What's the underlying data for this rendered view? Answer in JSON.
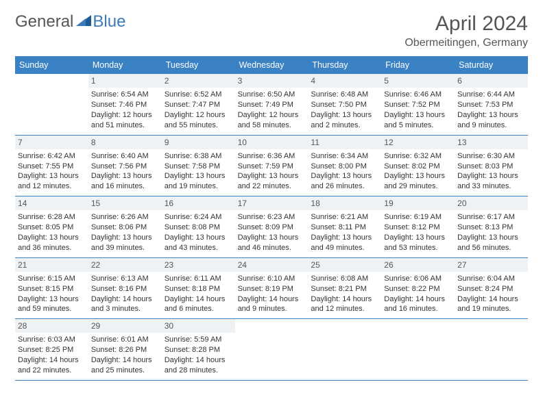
{
  "logo": {
    "general": "General",
    "blue": "Blue"
  },
  "title": {
    "month_year": "April 2024",
    "location": "Obermeitingen, Germany"
  },
  "weekdays": [
    "Sunday",
    "Monday",
    "Tuesday",
    "Wednesday",
    "Thursday",
    "Friday",
    "Saturday"
  ],
  "colors": {
    "header_bg": "#3b82c4",
    "header_text": "#ffffff",
    "daynum_bg": "#eef2f5",
    "border": "#3b82c4",
    "logo_general": "#555555",
    "logo_blue": "#3a7ab8",
    "title_color": "#555555",
    "text_color": "#333333",
    "background": "#ffffff"
  },
  "typography": {
    "body_font": "Arial",
    "month_year_size": 30,
    "location_size": 16,
    "weekday_size": 12.5,
    "daynum_size": 12,
    "info_size": 11
  },
  "weeks": [
    [
      {
        "empty": true
      },
      {
        "day": "1",
        "sunrise": "Sunrise: 6:54 AM",
        "sunset": "Sunset: 7:46 PM",
        "daylight1": "Daylight: 12 hours",
        "daylight2": "and 51 minutes."
      },
      {
        "day": "2",
        "sunrise": "Sunrise: 6:52 AM",
        "sunset": "Sunset: 7:47 PM",
        "daylight1": "Daylight: 12 hours",
        "daylight2": "and 55 minutes."
      },
      {
        "day": "3",
        "sunrise": "Sunrise: 6:50 AM",
        "sunset": "Sunset: 7:49 PM",
        "daylight1": "Daylight: 12 hours",
        "daylight2": "and 58 minutes."
      },
      {
        "day": "4",
        "sunrise": "Sunrise: 6:48 AM",
        "sunset": "Sunset: 7:50 PM",
        "daylight1": "Daylight: 13 hours",
        "daylight2": "and 2 minutes."
      },
      {
        "day": "5",
        "sunrise": "Sunrise: 6:46 AM",
        "sunset": "Sunset: 7:52 PM",
        "daylight1": "Daylight: 13 hours",
        "daylight2": "and 5 minutes."
      },
      {
        "day": "6",
        "sunrise": "Sunrise: 6:44 AM",
        "sunset": "Sunset: 7:53 PM",
        "daylight1": "Daylight: 13 hours",
        "daylight2": "and 9 minutes."
      }
    ],
    [
      {
        "day": "7",
        "sunrise": "Sunrise: 6:42 AM",
        "sunset": "Sunset: 7:55 PM",
        "daylight1": "Daylight: 13 hours",
        "daylight2": "and 12 minutes."
      },
      {
        "day": "8",
        "sunrise": "Sunrise: 6:40 AM",
        "sunset": "Sunset: 7:56 PM",
        "daylight1": "Daylight: 13 hours",
        "daylight2": "and 16 minutes."
      },
      {
        "day": "9",
        "sunrise": "Sunrise: 6:38 AM",
        "sunset": "Sunset: 7:58 PM",
        "daylight1": "Daylight: 13 hours",
        "daylight2": "and 19 minutes."
      },
      {
        "day": "10",
        "sunrise": "Sunrise: 6:36 AM",
        "sunset": "Sunset: 7:59 PM",
        "daylight1": "Daylight: 13 hours",
        "daylight2": "and 22 minutes."
      },
      {
        "day": "11",
        "sunrise": "Sunrise: 6:34 AM",
        "sunset": "Sunset: 8:00 PM",
        "daylight1": "Daylight: 13 hours",
        "daylight2": "and 26 minutes."
      },
      {
        "day": "12",
        "sunrise": "Sunrise: 6:32 AM",
        "sunset": "Sunset: 8:02 PM",
        "daylight1": "Daylight: 13 hours",
        "daylight2": "and 29 minutes."
      },
      {
        "day": "13",
        "sunrise": "Sunrise: 6:30 AM",
        "sunset": "Sunset: 8:03 PM",
        "daylight1": "Daylight: 13 hours",
        "daylight2": "and 33 minutes."
      }
    ],
    [
      {
        "day": "14",
        "sunrise": "Sunrise: 6:28 AM",
        "sunset": "Sunset: 8:05 PM",
        "daylight1": "Daylight: 13 hours",
        "daylight2": "and 36 minutes."
      },
      {
        "day": "15",
        "sunrise": "Sunrise: 6:26 AM",
        "sunset": "Sunset: 8:06 PM",
        "daylight1": "Daylight: 13 hours",
        "daylight2": "and 39 minutes."
      },
      {
        "day": "16",
        "sunrise": "Sunrise: 6:24 AM",
        "sunset": "Sunset: 8:08 PM",
        "daylight1": "Daylight: 13 hours",
        "daylight2": "and 43 minutes."
      },
      {
        "day": "17",
        "sunrise": "Sunrise: 6:23 AM",
        "sunset": "Sunset: 8:09 PM",
        "daylight1": "Daylight: 13 hours",
        "daylight2": "and 46 minutes."
      },
      {
        "day": "18",
        "sunrise": "Sunrise: 6:21 AM",
        "sunset": "Sunset: 8:11 PM",
        "daylight1": "Daylight: 13 hours",
        "daylight2": "and 49 minutes."
      },
      {
        "day": "19",
        "sunrise": "Sunrise: 6:19 AM",
        "sunset": "Sunset: 8:12 PM",
        "daylight1": "Daylight: 13 hours",
        "daylight2": "and 53 minutes."
      },
      {
        "day": "20",
        "sunrise": "Sunrise: 6:17 AM",
        "sunset": "Sunset: 8:13 PM",
        "daylight1": "Daylight: 13 hours",
        "daylight2": "and 56 minutes."
      }
    ],
    [
      {
        "day": "21",
        "sunrise": "Sunrise: 6:15 AM",
        "sunset": "Sunset: 8:15 PM",
        "daylight1": "Daylight: 13 hours",
        "daylight2": "and 59 minutes."
      },
      {
        "day": "22",
        "sunrise": "Sunrise: 6:13 AM",
        "sunset": "Sunset: 8:16 PM",
        "daylight1": "Daylight: 14 hours",
        "daylight2": "and 3 minutes."
      },
      {
        "day": "23",
        "sunrise": "Sunrise: 6:11 AM",
        "sunset": "Sunset: 8:18 PM",
        "daylight1": "Daylight: 14 hours",
        "daylight2": "and 6 minutes."
      },
      {
        "day": "24",
        "sunrise": "Sunrise: 6:10 AM",
        "sunset": "Sunset: 8:19 PM",
        "daylight1": "Daylight: 14 hours",
        "daylight2": "and 9 minutes."
      },
      {
        "day": "25",
        "sunrise": "Sunrise: 6:08 AM",
        "sunset": "Sunset: 8:21 PM",
        "daylight1": "Daylight: 14 hours",
        "daylight2": "and 12 minutes."
      },
      {
        "day": "26",
        "sunrise": "Sunrise: 6:06 AM",
        "sunset": "Sunset: 8:22 PM",
        "daylight1": "Daylight: 14 hours",
        "daylight2": "and 16 minutes."
      },
      {
        "day": "27",
        "sunrise": "Sunrise: 6:04 AM",
        "sunset": "Sunset: 8:24 PM",
        "daylight1": "Daylight: 14 hours",
        "daylight2": "and 19 minutes."
      }
    ],
    [
      {
        "day": "28",
        "sunrise": "Sunrise: 6:03 AM",
        "sunset": "Sunset: 8:25 PM",
        "daylight1": "Daylight: 14 hours",
        "daylight2": "and 22 minutes."
      },
      {
        "day": "29",
        "sunrise": "Sunrise: 6:01 AM",
        "sunset": "Sunset: 8:26 PM",
        "daylight1": "Daylight: 14 hours",
        "daylight2": "and 25 minutes."
      },
      {
        "day": "30",
        "sunrise": "Sunrise: 5:59 AM",
        "sunset": "Sunset: 8:28 PM",
        "daylight1": "Daylight: 14 hours",
        "daylight2": "and 28 minutes."
      },
      {
        "empty": true
      },
      {
        "empty": true
      },
      {
        "empty": true
      },
      {
        "empty": true
      }
    ]
  ]
}
